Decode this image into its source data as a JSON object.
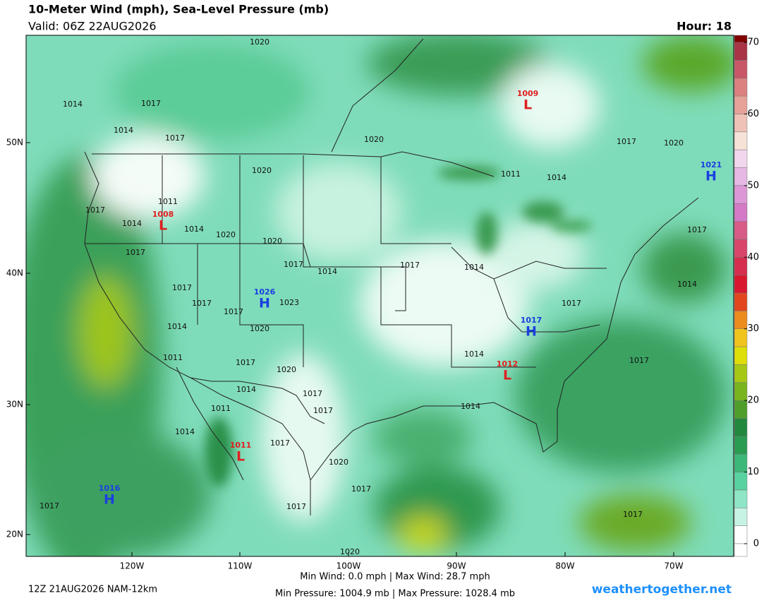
{
  "header": {
    "title": "10-Meter Wind (mph), Sea-Level Pressure (mb)",
    "valid": "Valid: 06Z 22AUG2026",
    "hour": "Hour: 18"
  },
  "map": {
    "lat_labels": [
      "50N",
      "40N",
      "30N",
      "20N"
    ],
    "lon_labels": [
      "120W",
      "110W",
      "100W",
      "90W",
      "80W",
      "70W"
    ],
    "isobar_labels": [
      1020,
      1014,
      1017,
      1014,
      1017,
      1020,
      1020,
      1011,
      1017,
      1014,
      1014,
      1020,
      1020,
      1017,
      1017,
      1014,
      1017,
      1014,
      1017,
      1017,
      1017,
      1023,
      1014,
      1020,
      1011,
      1017,
      1020,
      1014,
      1017,
      1017,
      1011,
      1014,
      1017,
      1014,
      1014,
      1020,
      1017,
      1017,
      1017,
      1017,
      1020,
      1011,
      1014,
      1017,
      1014,
      1017,
      1017,
      1017,
      1020
    ],
    "highs": [
      {
        "letter": "H",
        "pressure": 1016
      },
      {
        "letter": "H",
        "pressure": 1026
      },
      {
        "letter": "H",
        "pressure": 1017
      },
      {
        "letter": "H",
        "pressure": 1021
      }
    ],
    "lows": [
      {
        "letter": "L",
        "pressure": 1009
      },
      {
        "letter": "L",
        "pressure": 1008
      },
      {
        "letter": "L",
        "pressure": 1012
      },
      {
        "letter": "L",
        "pressure": 1011
      }
    ]
  },
  "colorbar": {
    "ticks": [
      0,
      10,
      20,
      30,
      40,
      50,
      60,
      70
    ],
    "lim": [
      0,
      70
    ],
    "colors": [
      "#ffffff",
      "#c6f3e4",
      "#8ee6c6",
      "#58d2a0",
      "#3cb878",
      "#2a9c52",
      "#22883e",
      "#4f9e2c",
      "#79b41e",
      "#a6c814",
      "#dede08",
      "#f0c41c",
      "#ec8c1e",
      "#e2461e",
      "#d8182e",
      "#d62e4e",
      "#d8466a",
      "#d85c88",
      "#d47ac6",
      "#dc98d6",
      "#e6b8e4",
      "#f2d6ee",
      "#f6e2d6",
      "#eec2b6",
      "#e6a298",
      "#dc8080",
      "#c85868",
      "#a83446"
    ],
    "over": "#800000"
  },
  "footer": {
    "run": "12Z 21AUG2026 NAM-12km",
    "wind": "Min Wind:   0.0 mph | Max Wind:  28.7 mph",
    "pressure": "Min Pressure: 1004.9 mb | Max Pressure: 1028.4 mb",
    "site": "weathertogether.net"
  }
}
